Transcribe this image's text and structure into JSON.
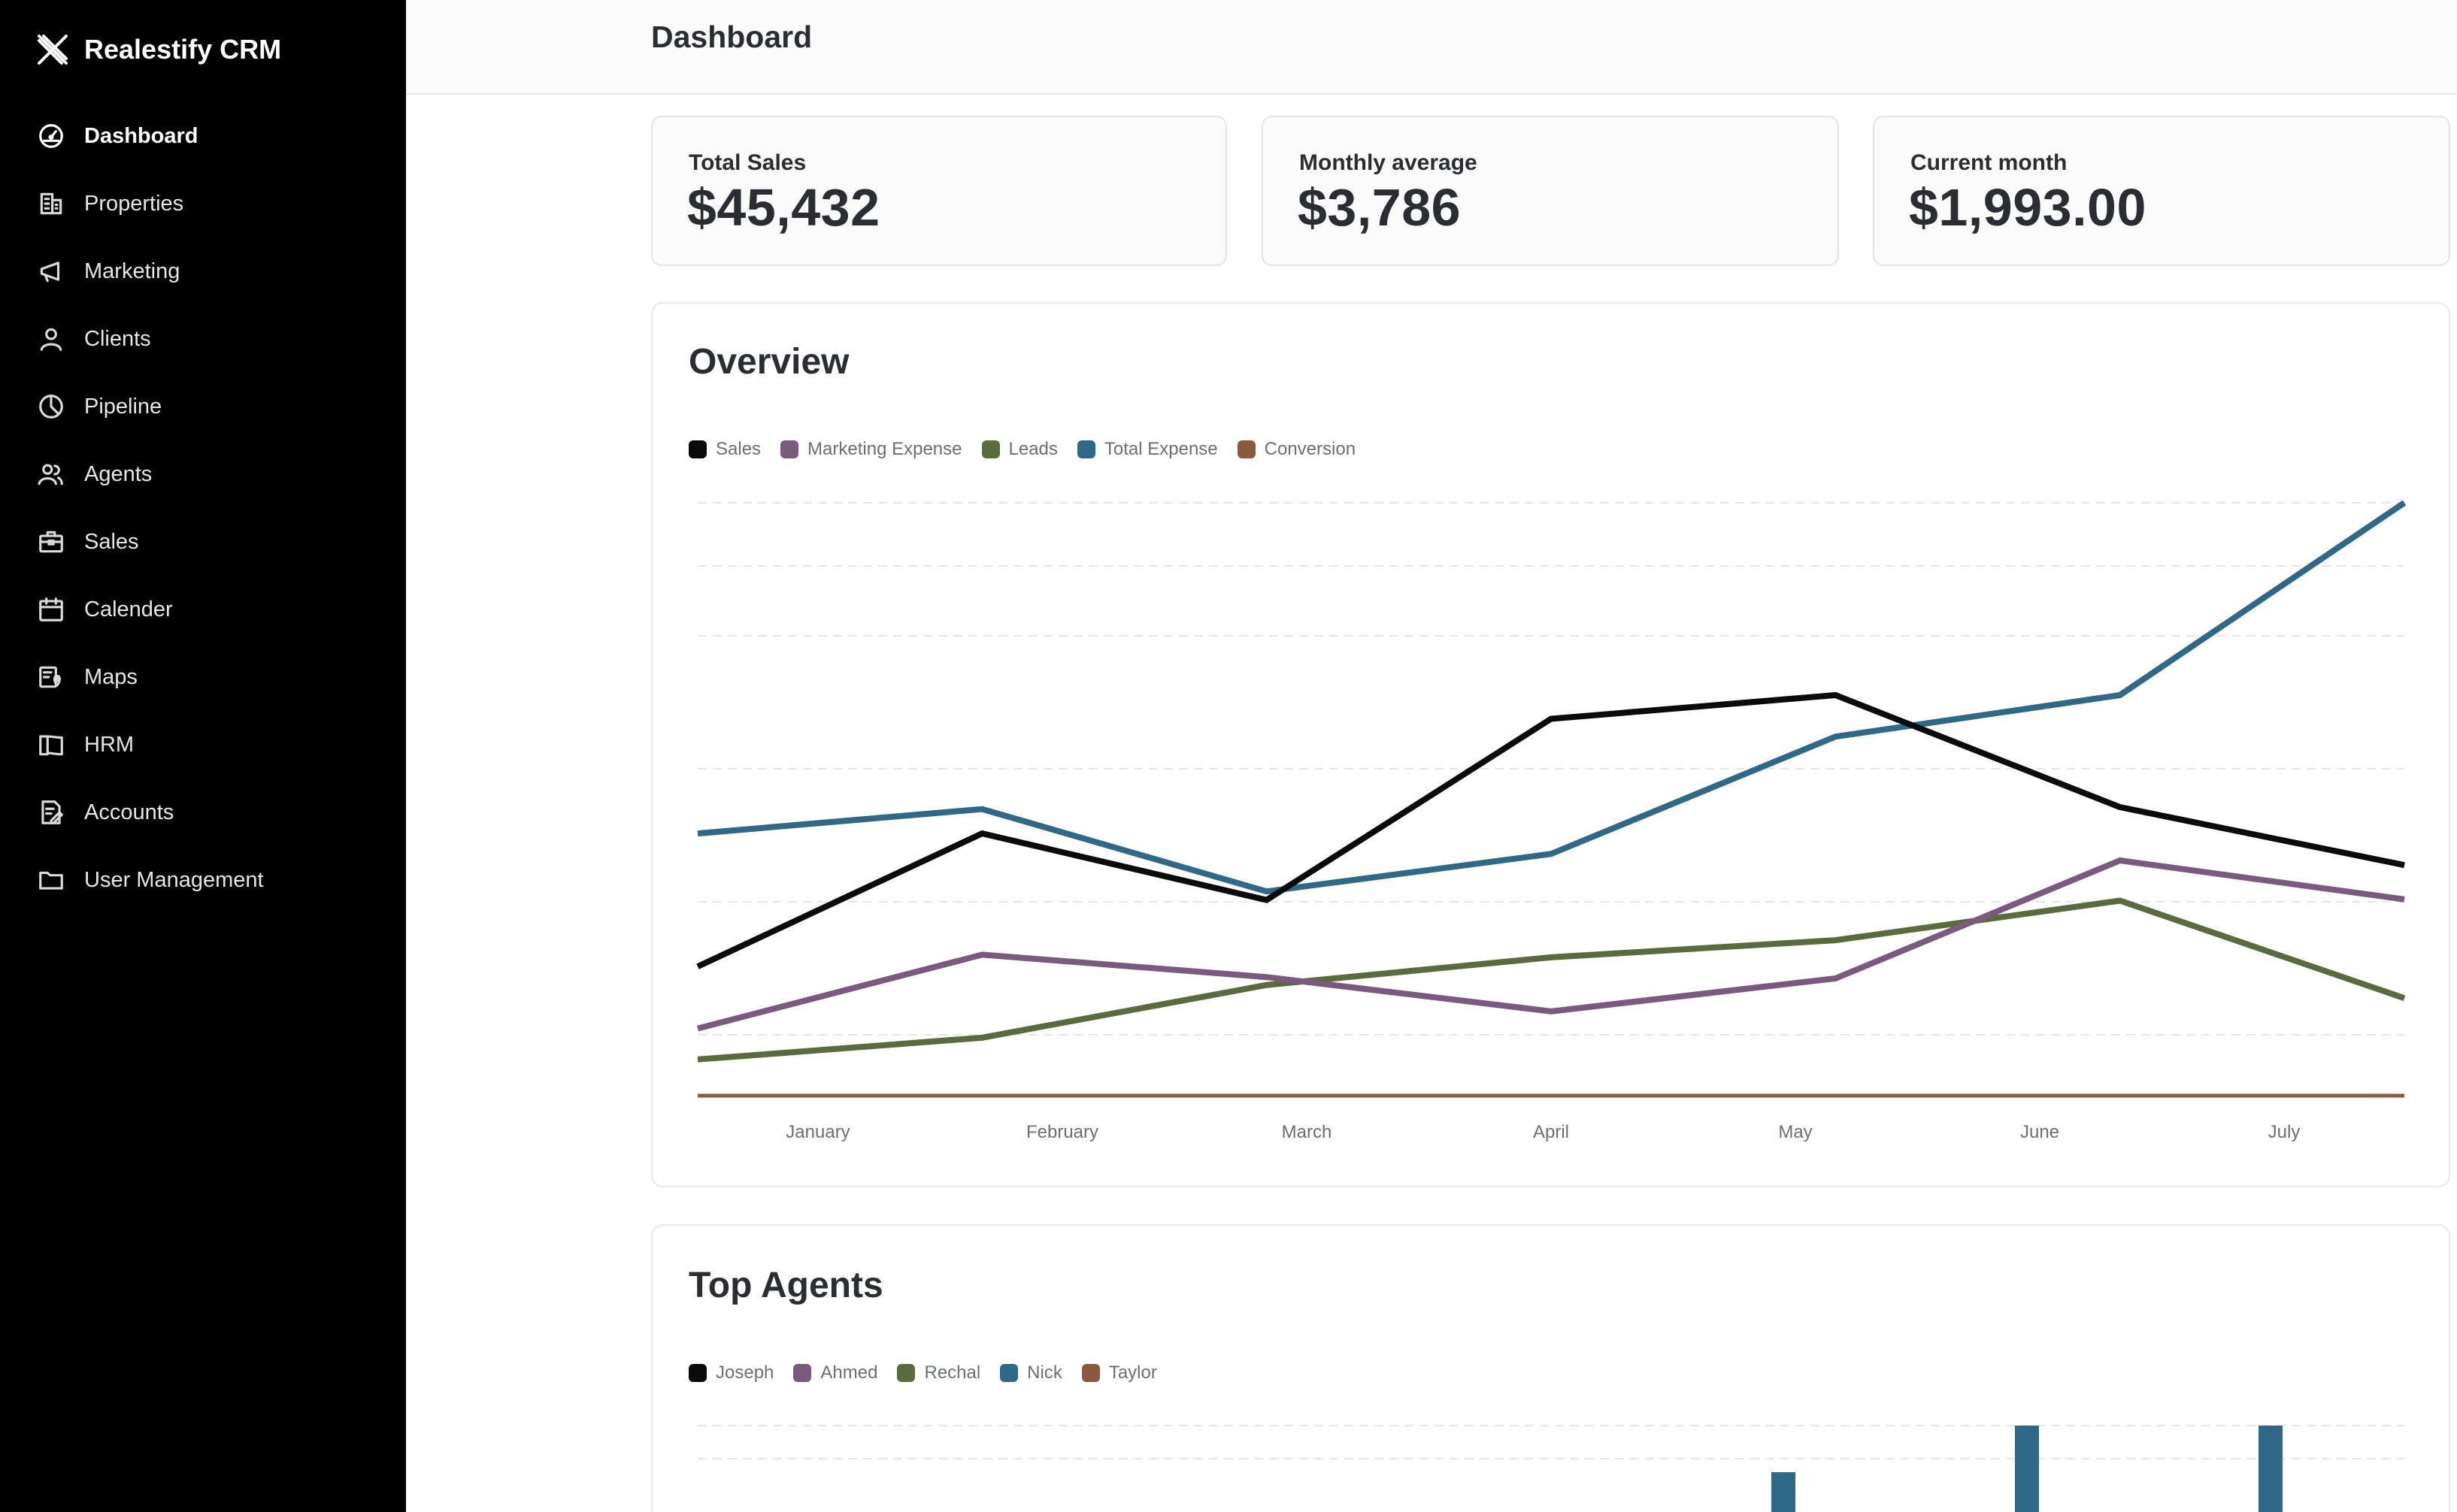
{
  "app": {
    "name": "Realestify CRM"
  },
  "sidebar": {
    "items": [
      {
        "label": "Dashboard",
        "icon": "dashboard-gauge-icon",
        "active": true
      },
      {
        "label": "Properties",
        "icon": "building-icon"
      },
      {
        "label": "Marketing",
        "icon": "megaphone-icon"
      },
      {
        "label": "Clients",
        "icon": "user-icon"
      },
      {
        "label": "Pipeline",
        "icon": "pie-chart-icon"
      },
      {
        "label": "Agents",
        "icon": "users-icon"
      },
      {
        "label": "Sales",
        "icon": "briefcase-icon"
      },
      {
        "label": "Calender",
        "icon": "calendar-icon"
      },
      {
        "label": "Maps",
        "icon": "map-pin-icon"
      },
      {
        "label": "HRM",
        "icon": "book-icon"
      },
      {
        "label": "Accounts",
        "icon": "document-edit-icon"
      },
      {
        "label": "User Management",
        "icon": "folder-icon"
      }
    ]
  },
  "header": {
    "title": "Dashboard"
  },
  "stats": [
    {
      "label": "Total Sales",
      "value": "$45,432"
    },
    {
      "label": "Monthly average",
      "value": "$3,786"
    },
    {
      "label": "Current month",
      "value": "$1,993.00"
    }
  ],
  "overview": {
    "title": "Overview",
    "chart_data": {
      "type": "line",
      "categories": [
        "January",
        "February",
        "March",
        "April",
        "May",
        "June",
        "July"
      ],
      "series": [
        {
          "name": "Sales",
          "color": "#0b0b0b",
          "values": [
            196,
            398,
            297,
            572,
            608,
            438,
            350
          ]
        },
        {
          "name": "Marketing Expense",
          "color": "#7b5a80",
          "values": [
            102,
            214,
            180,
            128,
            178,
            357,
            298
          ]
        },
        {
          "name": "Leads",
          "color": "#5a6b3e",
          "values": [
            55,
            88,
            168,
            210,
            236,
            296,
            148
          ]
        },
        {
          "name": "Total Expense",
          "color": "#2e6a88",
          "values": [
            398,
            435,
            310,
            367,
            545,
            608,
            900
          ]
        },
        {
          "name": "Conversion",
          "color": "#8a5a3e",
          "values": [
            0,
            0,
            0,
            0,
            0,
            0,
            0
          ]
        }
      ],
      "ylim": [
        0,
        900
      ],
      "grid": true,
      "legend": "top-left"
    }
  },
  "top_agents": {
    "title": "Top Agents",
    "chart_data": {
      "type": "bar",
      "series": [
        {
          "name": "Joseph",
          "color": "#0b0b0b"
        },
        {
          "name": "Ahmed",
          "color": "#7b5a80"
        },
        {
          "name": "Rechal",
          "color": "#5a6b3e"
        },
        {
          "name": "Nick",
          "color": "#2e6a88"
        },
        {
          "name": "Taylor",
          "color": "#8a5a3e"
        }
      ],
      "grid": true,
      "legend": "top-left"
    }
  }
}
